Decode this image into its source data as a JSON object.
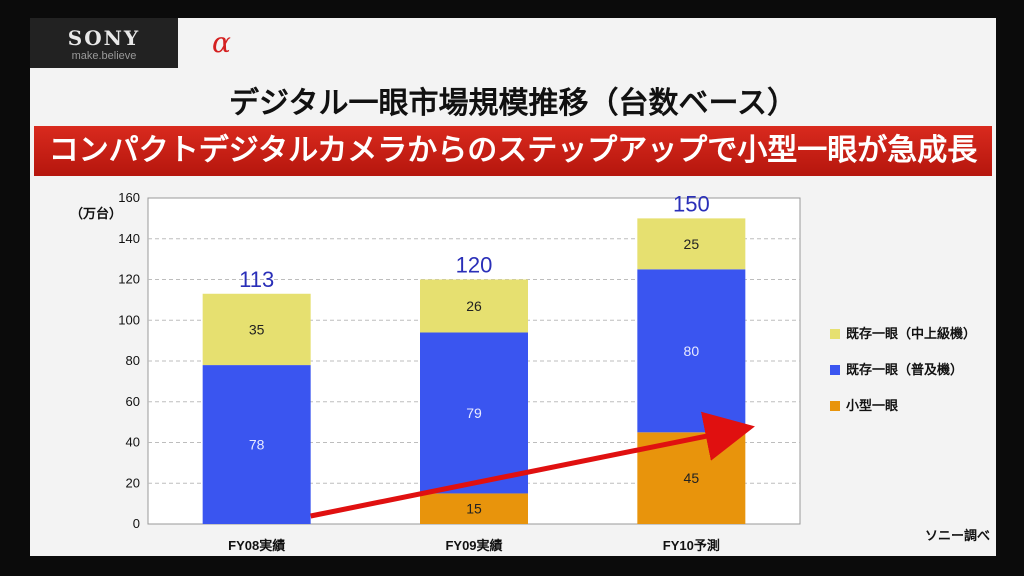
{
  "brand": {
    "name": "SONY",
    "tagline": "make.believe",
    "logo_glyph": "α"
  },
  "slide": {
    "title": "デジタル一眼市場規模推移（台数ベース）",
    "banner": "コンパクトデジタルカメラからのステップアップで小型一眼が急成長",
    "source": "ソニー調べ"
  },
  "chart_data": {
    "type": "bar",
    "stacked": true,
    "ylabel": "（万台）",
    "ylim": [
      0,
      160
    ],
    "yticks": [
      0,
      20,
      40,
      60,
      80,
      100,
      120,
      140,
      160
    ],
    "grid": true,
    "legend_position": "right",
    "categories": [
      "FY08実績",
      "FY09実績",
      "FY10予測"
    ],
    "totals": [
      113,
      120,
      150
    ],
    "series": [
      {
        "name": "小型一眼",
        "color": "#e8940c",
        "values": [
          0,
          15,
          45
        ],
        "labels": [
          "",
          "15",
          "45"
        ]
      },
      {
        "name": "既存一眼（普及機）",
        "color": "#3a55f0",
        "values": [
          78,
          79,
          80
        ],
        "labels": [
          "78",
          "79",
          "80"
        ]
      },
      {
        "name": "既存一眼（中上級機）",
        "color": "#e6e070",
        "values": [
          35,
          26,
          25
        ],
        "labels": [
          "35",
          "26",
          "25"
        ]
      }
    ],
    "legend_order": [
      "既存一眼（中上級機）",
      "既存一眼（普及機）",
      "小型一眼"
    ],
    "annotation": {
      "type": "arrow",
      "color": "#e01010"
    }
  }
}
